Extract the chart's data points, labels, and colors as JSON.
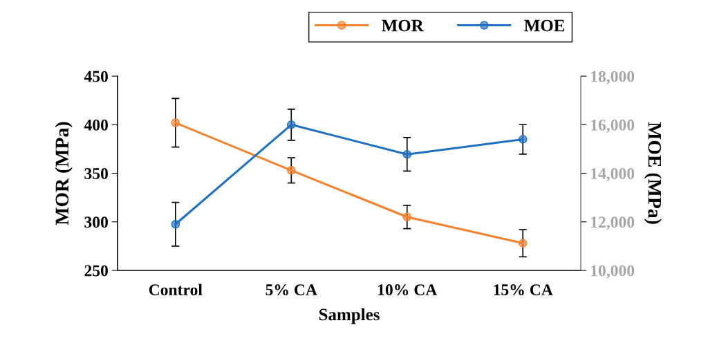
{
  "chart_data": {
    "type": "line",
    "xlabel": "Samples",
    "ylabel": "MOR (MPa)",
    "y2label": "MOE (MPa)",
    "categories": [
      "Control",
      "5% CA",
      "10% CA",
      "15% CA"
    ],
    "series": [
      {
        "name": "MOR",
        "color": "#f4822e",
        "values": [
          402,
          353,
          305,
          278
        ],
        "errors": [
          25,
          13,
          12,
          14
        ]
      },
      {
        "name": "MOE",
        "color": "#1f70c1",
        "values": [
          11900,
          16000,
          14780,
          15400
        ],
        "errors": [
          900,
          640,
          690,
          610
        ],
        "axis": "y2"
      }
    ],
    "ylim": [
      250,
      450
    ],
    "yticks": [
      250,
      300,
      350,
      400,
      450
    ],
    "y2lim": [
      10000,
      18000
    ],
    "y2ticks": [
      {
        "value": 10000,
        "label": "10,000"
      },
      {
        "value": 12000,
        "label": "12,000"
      },
      {
        "value": 14000,
        "label": "14,000"
      },
      {
        "value": 16000,
        "label": "16,000"
      },
      {
        "value": 18000,
        "label": "18,000"
      }
    ],
    "marker": "circle",
    "line_style": "solid",
    "legend": "top right",
    "grid": false
  }
}
